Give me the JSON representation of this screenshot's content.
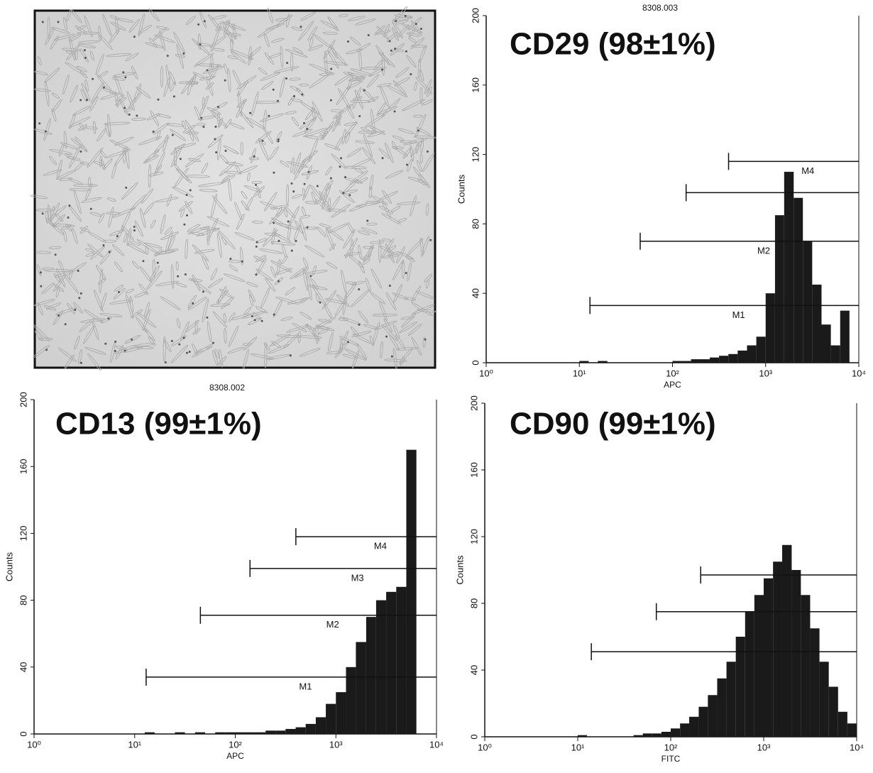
{
  "chart_data": [
    {
      "type": "histogram",
      "title": "8308.003",
      "annotation": "CD29 (98±1%)",
      "xlabel": "APC",
      "ylabel": "Counts",
      "xscale": "log",
      "color": "#1a1a1a",
      "bins": [
        1,
        1.26,
        1.58,
        2,
        2.51,
        3.16,
        3.98,
        5.01,
        6.31,
        7.94,
        10,
        12.6,
        15.8,
        20,
        25.1,
        31.6,
        39.8,
        50.1,
        63.1,
        79.4,
        100,
        126,
        158,
        200,
        251,
        316,
        398,
        501,
        631,
        794,
        1000,
        1260,
        1580,
        2000,
        2510,
        3160,
        3980,
        5010,
        6310,
        7940,
        10000
      ],
      "values": [
        0,
        0,
        0,
        0,
        0,
        0,
        0,
        0,
        0,
        0,
        1,
        0,
        1,
        0,
        0,
        0,
        0,
        0,
        0,
        0,
        1,
        1,
        2,
        2,
        3,
        4,
        5,
        7,
        10,
        15,
        40,
        85,
        110,
        95,
        70,
        45,
        22,
        10,
        30,
        0
      ],
      "xlim": [
        1,
        10000
      ],
      "ylim": [
        0,
        200
      ],
      "xticks": [
        {
          "value": 1,
          "label": "10⁰"
        },
        {
          "value": 10,
          "label": "10¹"
        },
        {
          "value": 100,
          "label": "10²"
        },
        {
          "value": 1000,
          "label": "10³"
        },
        {
          "value": 10000,
          "label": "10⁴"
        }
      ],
      "yticks": [
        0,
        40,
        80,
        120,
        160,
        200
      ],
      "markers": [
        {
          "label": "M1",
          "x": 13,
          "y": 33
        },
        {
          "label": "M2",
          "x": 45,
          "y": 70
        },
        {
          "x": 140,
          "y": 98
        },
        {
          "label": "M4",
          "x": 400,
          "y": 116
        }
      ]
    },
    {
      "type": "histogram",
      "title": "8308.002",
      "annotation": "CD13 (99±1%)",
      "xlabel": "APC",
      "ylabel": "Counts",
      "xscale": "log",
      "color": "#1a1a1a",
      "bins": [
        1,
        1.26,
        1.58,
        2,
        2.51,
        3.16,
        3.98,
        5.01,
        6.31,
        7.94,
        10,
        12.6,
        15.8,
        20,
        25.1,
        31.6,
        39.8,
        50.1,
        63.1,
        79.4,
        100,
        126,
        158,
        200,
        251,
        316,
        398,
        501,
        631,
        794,
        1000,
        1260,
        1580,
        2000,
        2510,
        3160,
        3980,
        5010,
        6310,
        7940,
        10000
      ],
      "values": [
        0,
        0,
        0,
        0,
        0,
        0,
        0,
        0,
        0,
        0,
        0,
        1,
        0,
        0,
        1,
        0,
        1,
        0,
        1,
        1,
        1,
        1,
        1,
        2,
        2,
        3,
        4,
        6,
        10,
        18,
        25,
        40,
        55,
        70,
        80,
        85,
        88,
        170,
        0,
        0
      ],
      "xlim": [
        1,
        10000
      ],
      "ylim": [
        0,
        200
      ],
      "xticks": [
        {
          "value": 1,
          "label": "10⁰"
        },
        {
          "value": 10,
          "label": "10¹"
        },
        {
          "value": 100,
          "label": "10²"
        },
        {
          "value": 1000,
          "label": "10³"
        },
        {
          "value": 10000,
          "label": "10⁴"
        }
      ],
      "yticks": [
        0,
        40,
        80,
        120,
        160,
        200
      ],
      "markers": [
        {
          "label": "M1",
          "x": 13,
          "y": 34
        },
        {
          "label": "M2",
          "x": 45,
          "y": 71
        },
        {
          "label": "M3",
          "x": 140,
          "y": 99
        },
        {
          "label": "M4",
          "x": 400,
          "y": 118
        }
      ]
    },
    {
      "type": "histogram",
      "annotation": "CD90  (99±1%)",
      "xlabel": "FITC",
      "ylabel": "Counts",
      "xscale": "log",
      "color": "#1a1a1a",
      "bins": [
        1,
        1.26,
        1.58,
        2,
        2.51,
        3.16,
        3.98,
        5.01,
        6.31,
        7.94,
        10,
        12.6,
        15.8,
        20,
        25.1,
        31.6,
        39.8,
        50.1,
        63.1,
        79.4,
        100,
        126,
        158,
        200,
        251,
        316,
        398,
        501,
        631,
        794,
        1000,
        1260,
        1580,
        2000,
        2510,
        3160,
        3980,
        5010,
        6310,
        7940,
        10000
      ],
      "values": [
        0,
        0,
        0,
        0,
        0,
        0,
        0,
        0,
        0,
        0,
        1,
        0,
        0,
        0,
        0,
        0,
        1,
        2,
        2,
        3,
        5,
        8,
        12,
        18,
        25,
        35,
        45,
        60,
        75,
        85,
        95,
        105,
        115,
        100,
        85,
        65,
        45,
        30,
        15,
        8
      ],
      "xlim": [
        1,
        10000
      ],
      "ylim": [
        0,
        200
      ],
      "xticks": [
        {
          "value": 1,
          "label": "10⁰"
        },
        {
          "value": 10,
          "label": "10¹"
        },
        {
          "value": 100,
          "label": "10²"
        },
        {
          "value": 1000,
          "label": "10³"
        },
        {
          "value": 10000,
          "label": "10⁴"
        }
      ],
      "yticks": [
        0,
        40,
        80,
        120,
        160,
        200
      ],
      "markers": [
        {
          "x": 14,
          "y": 51
        },
        {
          "x": 70,
          "y": 75
        },
        {
          "x": 210,
          "y": 97
        }
      ]
    }
  ]
}
